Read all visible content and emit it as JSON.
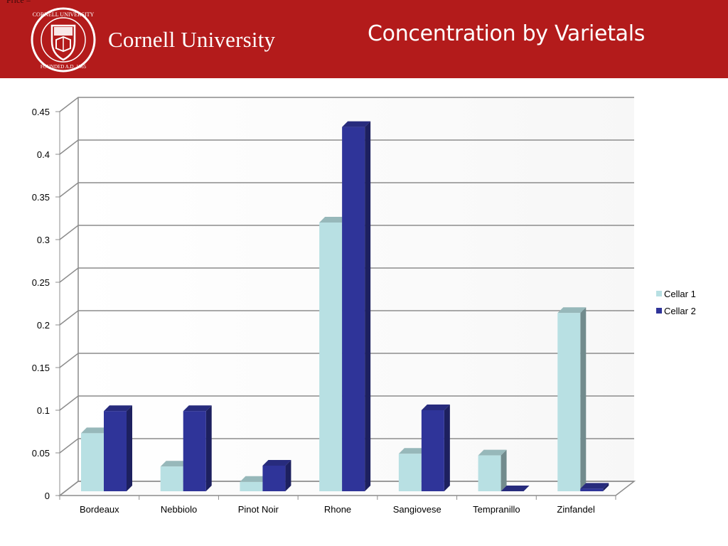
{
  "header": {
    "corner_text": "Price =",
    "brand": "Cornell University",
    "title": "Concentration by Varietals",
    "background_color": "#b31b1b"
  },
  "chart_data": {
    "type": "bar",
    "title": "Concentration by Varietals",
    "xlabel": "",
    "ylabel": "",
    "ylim": [
      0,
      0.45
    ],
    "yticks": [
      "0",
      "0.05",
      "0.1",
      "0.15",
      "0.2",
      "0.25",
      "0.3",
      "0.35",
      "0.4",
      "0.45"
    ],
    "categories": [
      "Bordeaux",
      "Nebbiolo",
      "Pinot Noir",
      "Rhone",
      "Sangiovese",
      "Tempranillo",
      "Zinfandel"
    ],
    "series": [
      {
        "name": "Cellar 1",
        "color": "#b8e0e3",
        "values": [
          0.068,
          0.029,
          0.011,
          0.315,
          0.044,
          0.042,
          0.209
        ]
      },
      {
        "name": "Cellar 2",
        "color": "#2f3499",
        "values": [
          0.094,
          0.094,
          0.03,
          0.427,
          0.095,
          0.0,
          0.003
        ]
      }
    ],
    "grid": true,
    "legend_position": "right",
    "style": "3d-clustered-column"
  }
}
